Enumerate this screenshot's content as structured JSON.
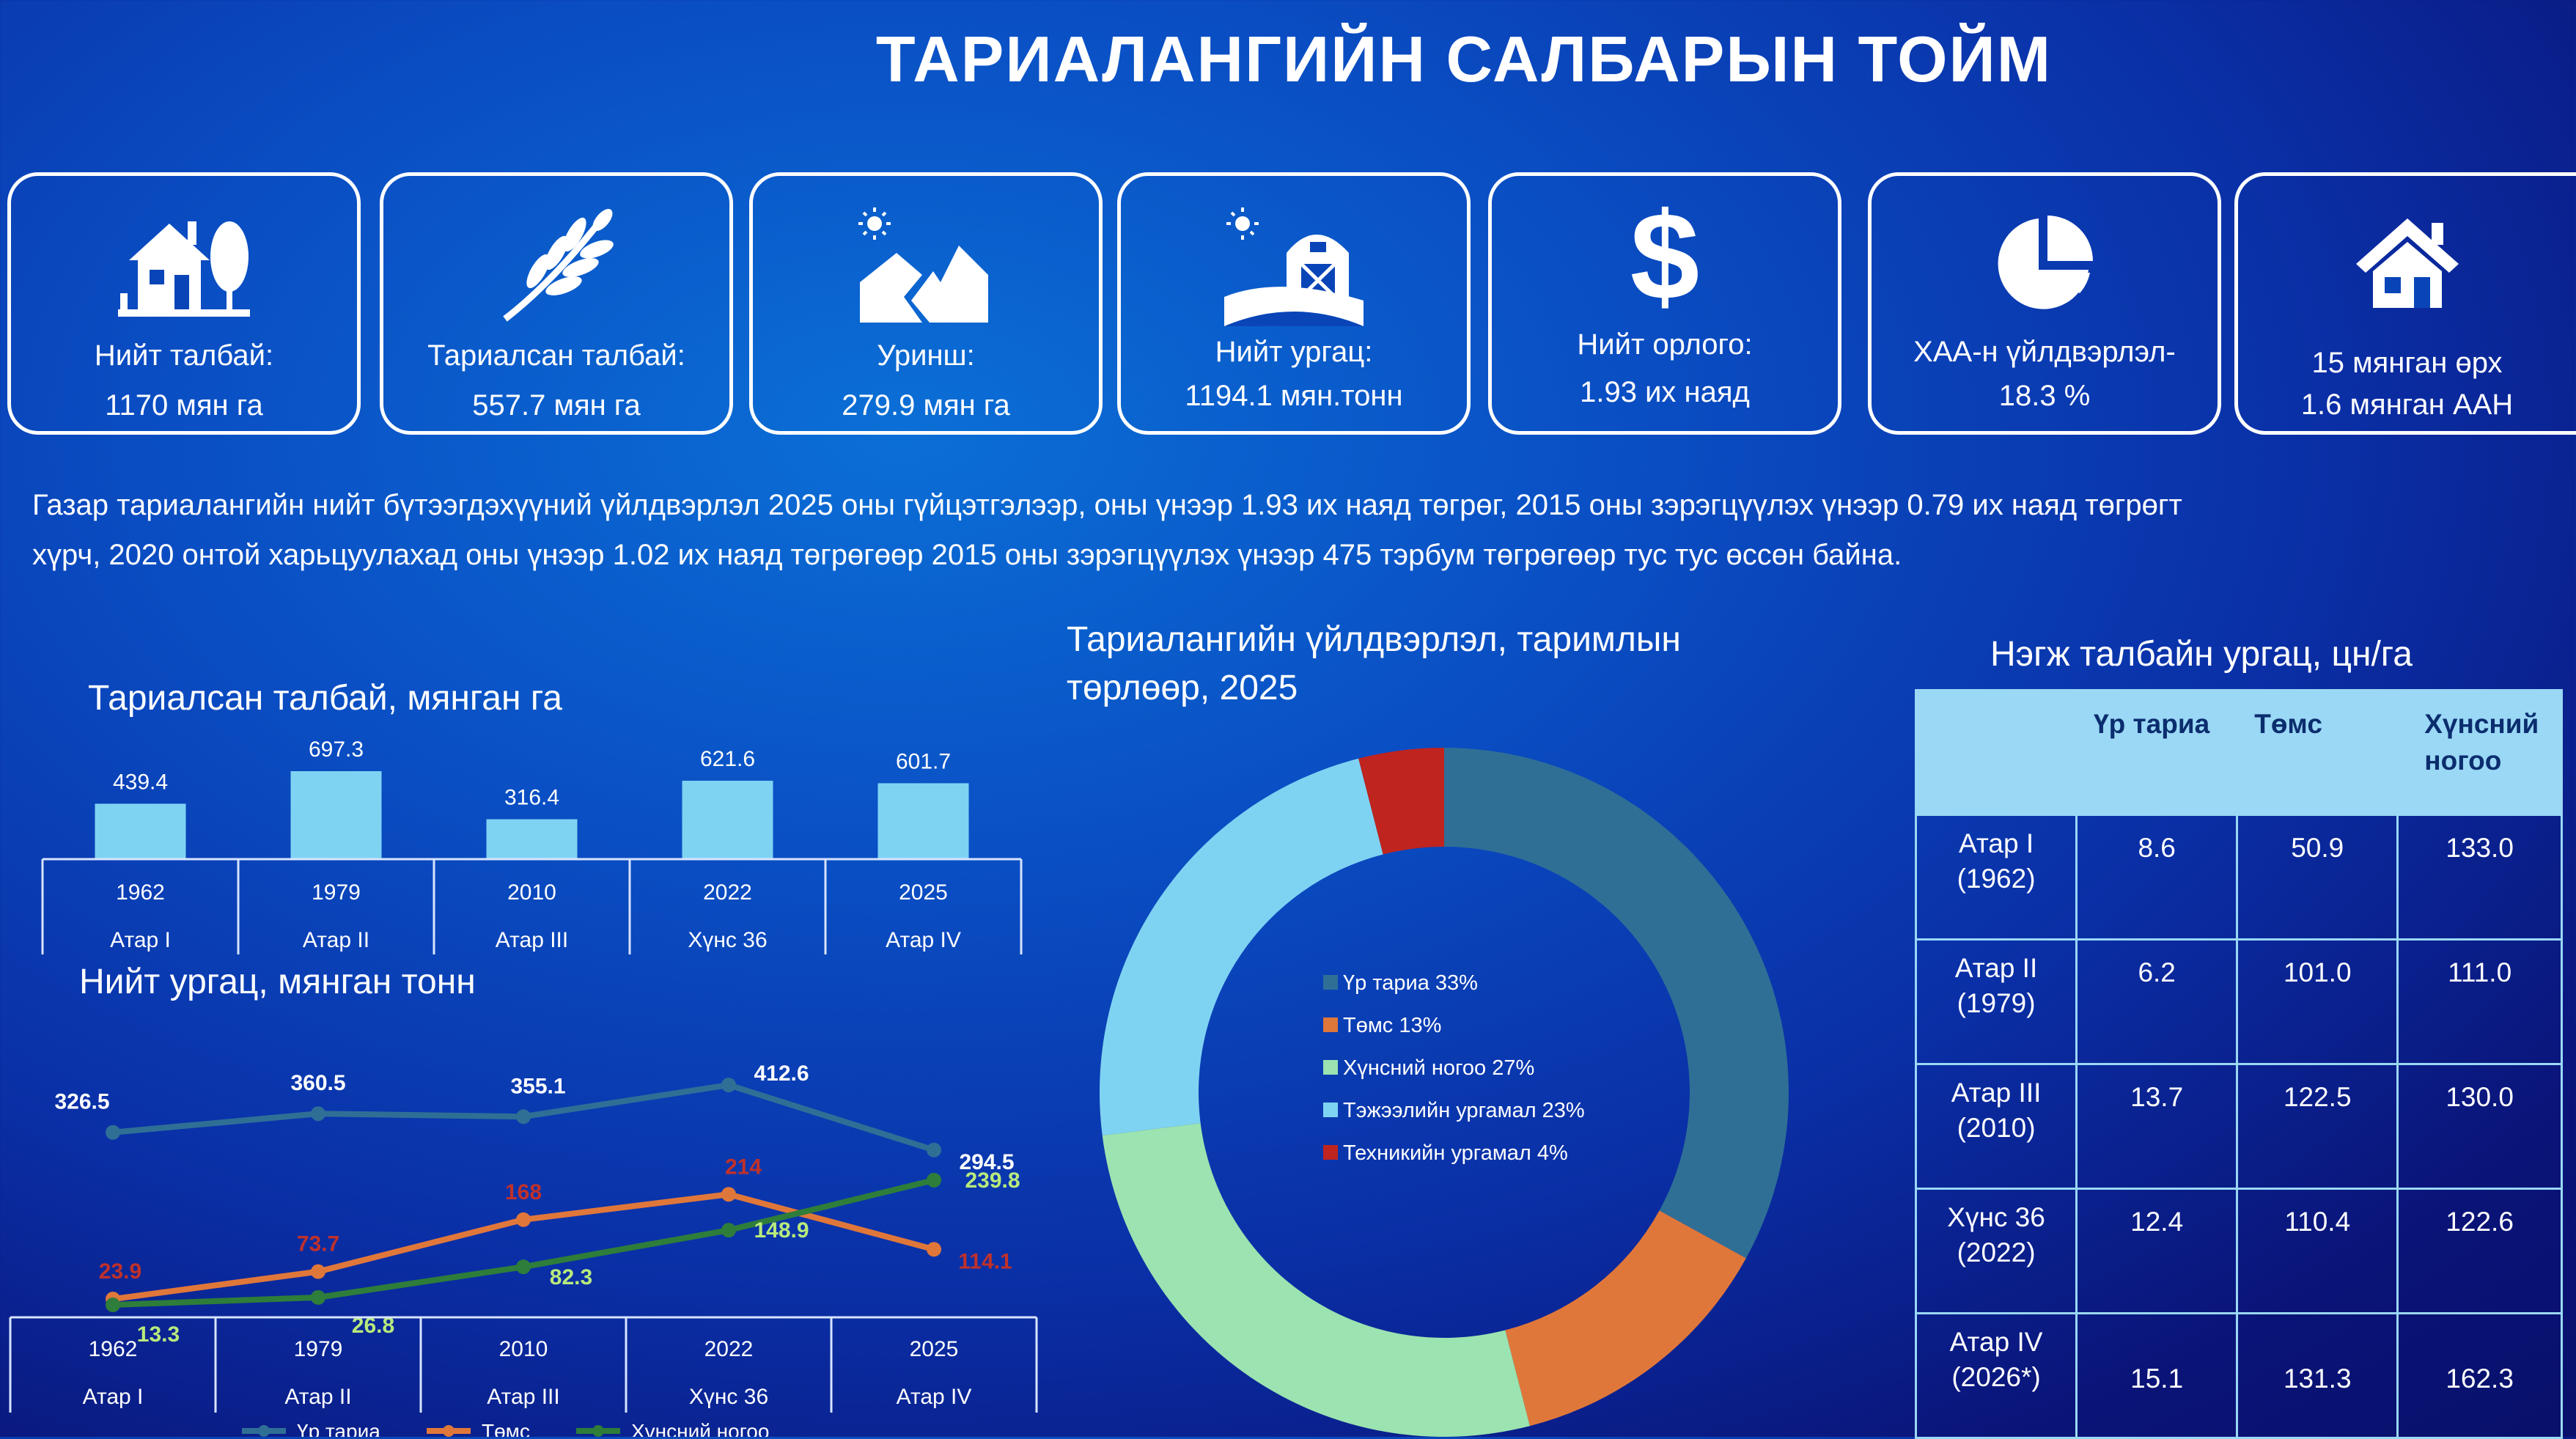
{
  "title": "ТАРИАЛАНГИЙН САЛБАРЫН ТОЙМ",
  "cards": [
    {
      "icon": "farmhouse-icon",
      "line1": "Нийт талбай:",
      "line2": "1170 мян га"
    },
    {
      "icon": "wheat-icon",
      "line1": "Тариалсан талбай:",
      "line2": "557.7 мян га"
    },
    {
      "icon": "fallow-land-icon",
      "line1": "Уринш:",
      "line2": "279.9 мян га"
    },
    {
      "icon": "barn-icon",
      "line1": "Нийт ургац:",
      "line2": "1194.1 мян.тонн"
    },
    {
      "icon": "dollar-icon",
      "line1": "Нийт орлого:",
      "line2": "1.93 их наяд"
    },
    {
      "icon": "pie-chart-icon",
      "line1": "ХАА-н үйлдвэрлэл-",
      "line2": "18.3 %"
    },
    {
      "icon": "house-icon",
      "line1": "15 мянган өрх",
      "line2": "1.6 мянган ААН"
    }
  ],
  "description_lines": [
    "Газар тариалангийн нийт бүтээгдэхүүний үйлдвэрлэл 2025 оны  гүйцэтгэлээр, оны үнээр 1.93 их наяд төгрөг, 2015 оны зэрэгцүүлэх үнээр 0.79 их наяд төгрөгт",
    "хүрч, 2020 онтой харьцуулахад оны үнээр 1.02 их наяд төгрөгөөр  2015 оны зэрэгцүүлэх үнээр 475 тэрбум төгрөгөөр тус тус өссөн байна."
  ],
  "colors": {
    "bar": "#7fd3f2",
    "grain": "#2f6f96",
    "potato": "#e0773a",
    "vegetable": "#2e7d3a",
    "fodder": "#7fd3f2",
    "technical": "#c0241f",
    "lightgreen": "#9be3b0",
    "dark_label": "#c0312a",
    "value_green": "#b8ea7c"
  },
  "chart_data": [
    {
      "type": "bar",
      "title": "Тариалсан талбай, мянган га",
      "categories": [
        "1962",
        "1979",
        "2010",
        "2022",
        "2025"
      ],
      "category_groups": [
        "Атар I",
        "Атар II",
        "Атар III",
        "Хүнс 36",
        "Атар IV"
      ],
      "values": [
        439.4,
        697.3,
        316.4,
        621.6,
        601.7
      ],
      "ylim": [
        0,
        800
      ]
    },
    {
      "type": "line",
      "title": "Нийт ургац, мянган тонн",
      "categories": [
        "1962",
        "1979",
        "2010",
        "2022",
        "2025"
      ],
      "category_groups": [
        "Атар I",
        "Атар II",
        "Атар III",
        "Хүнс 36",
        "Атар IV"
      ],
      "series": [
        {
          "name": "Үр тариа",
          "values": [
            326.5,
            360.5,
            355.1,
            412.6,
            294.5
          ]
        },
        {
          "name": "Төмс",
          "values": [
            23.9,
            73.7,
            168,
            214,
            114.1
          ]
        },
        {
          "name": "Хүнсний ногоо",
          "values": [
            13.3,
            26.8,
            82.3,
            148.9,
            239.8
          ]
        }
      ],
      "ylim": [
        0,
        430
      ]
    },
    {
      "type": "pie",
      "title": "Тариалангийн үйлдвэрлэл, таримлын төрлөөр, 2025",
      "title_lines": [
        "Тариалангийн үйлдвэрлэл, таримлын",
        "төрлөөр, 2025"
      ],
      "slices": [
        {
          "label": "Үр тариа 33%",
          "value": 33
        },
        {
          "label": "Төмс 13%",
          "value": 13
        },
        {
          "label": "Хүнсний ногоо 27%",
          "value": 27
        },
        {
          "label": "Тэжээлийн ургамал 23%",
          "value": 23
        },
        {
          "label": "Техникийн ургамал 4%",
          "value": 4
        }
      ]
    },
    {
      "type": "table",
      "title": "Нэгж талбайн ургац, цн/га",
      "columns": [
        "",
        "Үр тариа",
        "Төмс",
        "Хүнсний ногоо"
      ],
      "column_lines": [
        [],
        [
          "Үр тариа"
        ],
        [
          "Төмс"
        ],
        [
          "Хүнсний",
          "ногоо"
        ]
      ],
      "rows": [
        {
          "label": [
            "Атар I",
            "(1962)"
          ],
          "values": [
            "8.6",
            "50.9",
            "133.0"
          ]
        },
        {
          "label": [
            "Атар II",
            "(1979)"
          ],
          "values": [
            "6.2",
            "101.0",
            "111.0"
          ]
        },
        {
          "label": [
            "Атар III",
            "(2010)"
          ],
          "values": [
            "13.7",
            "122.5",
            "130.0"
          ]
        },
        {
          "label": [
            "Хүнс 36",
            "(2022)"
          ],
          "values": [
            "12.4",
            "110.4",
            "122.6"
          ]
        },
        {
          "label": [
            "Атар IV",
            "(2026*)"
          ],
          "values": [
            "15.1",
            "131.3",
            "162.3"
          ]
        }
      ]
    }
  ]
}
